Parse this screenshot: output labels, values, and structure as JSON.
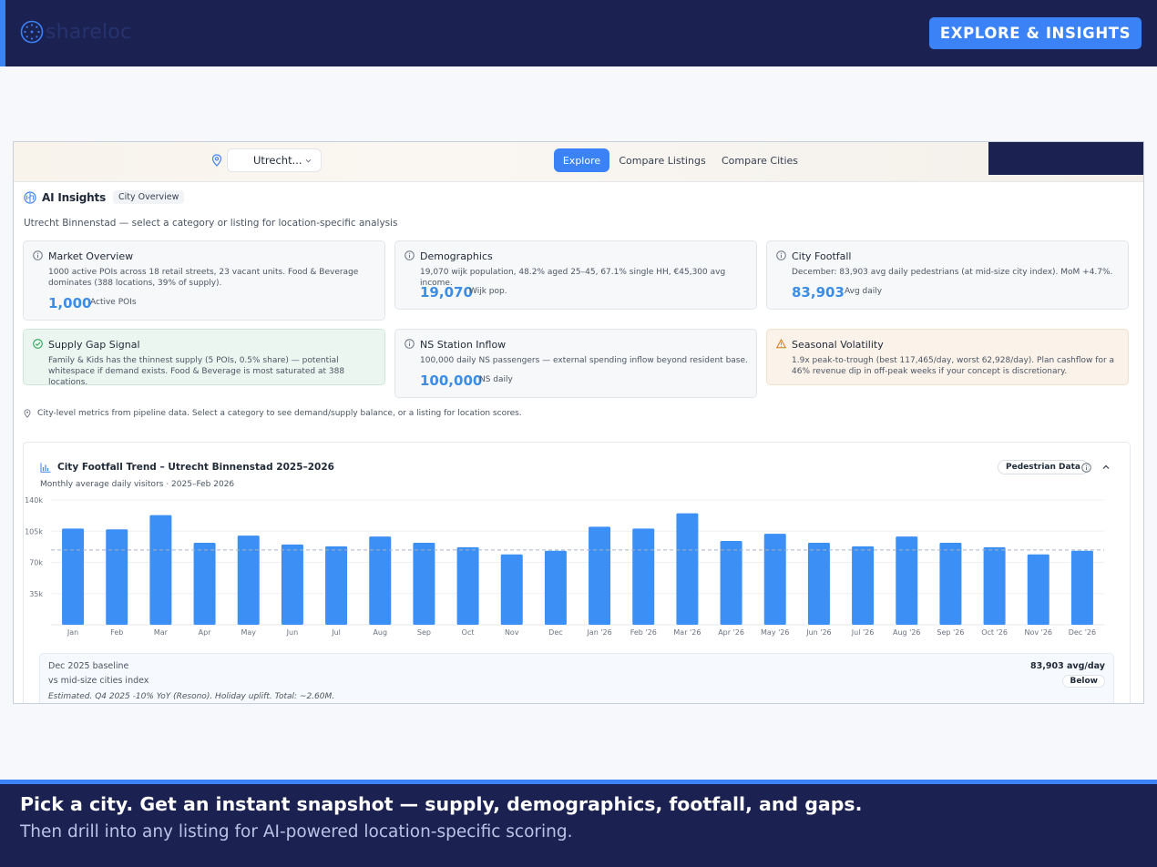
{
  "brand": {
    "name": "shareloc",
    "logo_icon": "clock-dots-icon"
  },
  "header": {
    "cta_label": "EXPLORE & INSIGHTS"
  },
  "nav": {
    "city": "Utrecht...",
    "tabs": [
      {
        "label": "Explore",
        "active": true
      },
      {
        "label": "Compare Listings",
        "active": false
      },
      {
        "label": "Compare Cities",
        "active": false
      }
    ]
  },
  "ai": {
    "title": "AI Insights",
    "badge": "City Overview",
    "subtitle": "Utrecht Binnenstad — select a category or listing for location-specific analysis"
  },
  "cards": {
    "market": {
      "title": "Market Overview",
      "desc": "1000 active POIs across 18 retail streets, 23 vacant units. Food & Beverage dominates (388 locations, 39% of supply).",
      "value": "1,000",
      "unit": "Active POIs"
    },
    "demographics": {
      "title": "Demographics",
      "desc": "19,070 wijk population, 48.2% aged 25–45, 67.1% single HH, €45,300 avg income.",
      "value": "19,070",
      "unit": "Wijk pop."
    },
    "footfall": {
      "title": "City Footfall",
      "desc": "December: 83,903 avg daily pedestrians (at mid-size city index). MoM +4.7%.",
      "value": "83,903",
      "unit": "Avg daily"
    },
    "supply_gap": {
      "title": "Supply Gap Signal",
      "desc": "Family & Kids has the thinnest supply (5 POIs, 0.5% share) — potential whitespace if demand exists. Food & Beverage is most saturated at 388 locations."
    },
    "ns_station": {
      "title": "NS Station Inflow",
      "desc": "100,000 daily NS passengers — external spending inflow beyond resident base.",
      "value": "100,000",
      "unit": "NS daily"
    },
    "seasonal": {
      "title": "Seasonal Volatility",
      "desc": "1.9x peak-to-trough (best 117,465/day, worst 62,928/day). Plan cashflow for a 46% revenue dip in off-peak weeks if your concept is discretionary."
    }
  },
  "note": "City-level metrics from pipeline data. Select a category to see demand/supply balance, or a listing for location scores.",
  "chart": {
    "title": "City Footfall Trend – Utrecht Binnenstad 2025–2026",
    "subtitle": "Monthly average daily visitors · 2025–Feb 2026",
    "pill": "Pedestrian Data"
  },
  "chart_data": {
    "type": "bar",
    "categories": [
      "Jan",
      "Feb",
      "Mar",
      "Apr",
      "May",
      "Jun",
      "Jul",
      "Aug",
      "Sep",
      "Oct",
      "Nov",
      "Dec",
      "Jan '26",
      "Feb '26",
      "Mar '26",
      "Apr '26",
      "May '26",
      "Jun '26",
      "Jul '26",
      "Aug '26",
      "Sep '26",
      "Oct '26",
      "Nov '26",
      "Dec '26"
    ],
    "values": [
      108000,
      107000,
      123000,
      92000,
      100000,
      90000,
      88000,
      99000,
      92000,
      87000,
      79000,
      83000,
      110000,
      108000,
      125000,
      94000,
      102000,
      92000,
      88000,
      99000,
      92000,
      87000,
      79000,
      83000
    ],
    "ylim": [
      0,
      140000
    ],
    "yticks": [
      35000,
      70000,
      105000,
      140000
    ],
    "ytick_labels": [
      "35k",
      "70k",
      "105k",
      "140k"
    ],
    "reference_line": 83903,
    "bar_color": "#3b8ff5",
    "grid": true
  },
  "baseline": {
    "title": "Dec 2025 baseline",
    "vs": "vs mid-size cities index",
    "note": "Estimated. Q4 2025 -10% YoY (Resono). Holiday uplift. Total: ~2.60M.",
    "value": "83,903 avg/day",
    "badge": "Below"
  },
  "footer": {
    "headline": "Pick a city. Get an instant snapshot — supply, demographics, footfall, and gaps.",
    "subline": "Then drill into any listing for AI-powered location-specific scoring."
  }
}
